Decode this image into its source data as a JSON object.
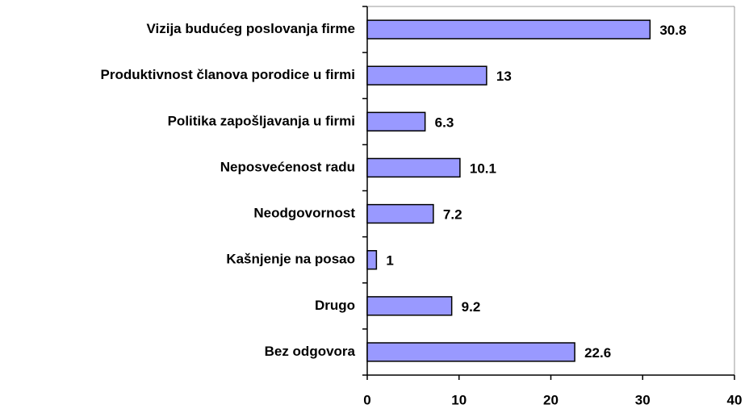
{
  "chart_data": {
    "type": "bar",
    "orientation": "horizontal",
    "categories": [
      "Vizija budućeg poslovanja firme",
      "Produktivnost članova porodice u firmi",
      "Politika zapošljavanja u firmi",
      "Neposvećenost radu",
      "Neodgovornost",
      "Kašnjenje na posao",
      "Drugo",
      "Bez odgovora"
    ],
    "values": [
      30.8,
      13,
      6.3,
      10.1,
      7.2,
      1,
      9.2,
      22.6
    ],
    "color": "#9999ff",
    "xlim": [
      0,
      40
    ],
    "xticks": [
      0,
      10,
      20,
      30,
      40
    ],
    "grid": false
  }
}
